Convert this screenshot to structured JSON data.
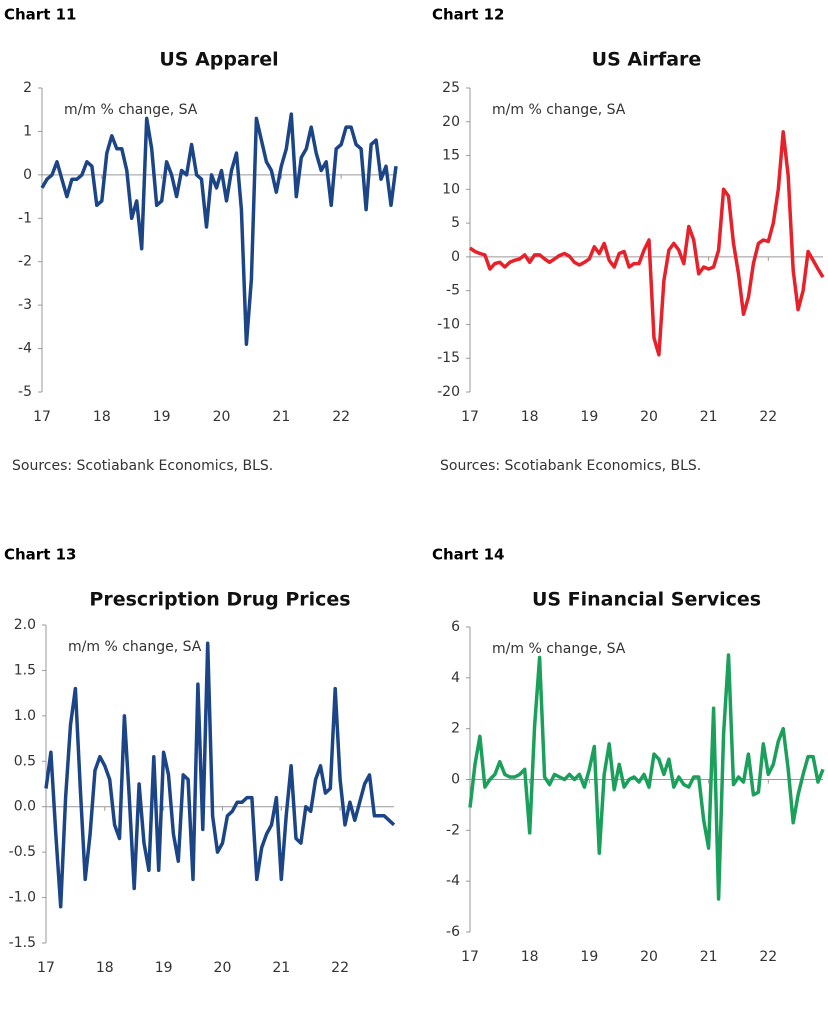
{
  "chart_data": [
    {
      "type": "line",
      "chart_label": "Chart 11",
      "title": "US Apparel",
      "subtitle": "m/m % change, SA",
      "source": "Sources: Scotiabank Economics, BLS.",
      "color": "#1c4587",
      "categories": [
        "17",
        null,
        null,
        null,
        null,
        null,
        null,
        null,
        null,
        null,
        null,
        null,
        "18",
        null,
        null,
        null,
        null,
        null,
        null,
        null,
        null,
        null,
        null,
        null,
        "19",
        null,
        null,
        null,
        null,
        null,
        null,
        null,
        null,
        null,
        null,
        null,
        "20",
        null,
        null,
        null,
        null,
        null,
        null,
        null,
        null,
        null,
        null,
        null,
        "21",
        null,
        null,
        null,
        null,
        null,
        null,
        null,
        null,
        null,
        null,
        null,
        "22",
        null,
        null,
        null,
        null,
        null,
        null,
        null,
        null,
        null,
        null,
        null
      ],
      "values": [
        -0.3,
        -0.1,
        0,
        0.3,
        -0.1,
        -0.5,
        -0.1,
        -0.1,
        0,
        0.3,
        0.2,
        -0.7,
        -0.6,
        0.5,
        0.9,
        0.6,
        0.6,
        0.1,
        -1.0,
        -0.6,
        -1.7,
        1.3,
        0.6,
        -0.7,
        -0.6,
        0.3,
        0,
        -0.5,
        0.1,
        0,
        0.7,
        0,
        -0.1,
        -1.2,
        0,
        -0.3,
        0.1,
        -0.6,
        0.1,
        0.5,
        -0.8,
        -3.9,
        -2.4,
        1.3,
        0.8,
        0.3,
        0.1,
        -0.4,
        0.2,
        0.6,
        1.4,
        -0.5,
        0.4,
        0.6,
        1.1,
        0.5,
        0.1,
        0.3,
        -0.7,
        0.6,
        0.7,
        1.1,
        1.1,
        0.7,
        0.6,
        -0.8,
        0.7,
        0.8,
        -0.1,
        0.2,
        -0.7,
        0.2
      ],
      "ylim": [
        -5,
        2
      ],
      "yticks": [
        -5,
        -4,
        -3,
        -2,
        -1,
        0,
        1,
        2
      ]
    },
    {
      "type": "line",
      "chart_label": "Chart 12",
      "title": "US Airfare",
      "subtitle": "m/m % change, SA",
      "source": "Sources: Scotiabank Economics, BLS.",
      "color": "#e8202a",
      "categories": [
        "17",
        null,
        null,
        null,
        null,
        null,
        null,
        null,
        null,
        null,
        null,
        null,
        "18",
        null,
        null,
        null,
        null,
        null,
        null,
        null,
        null,
        null,
        null,
        null,
        "19",
        null,
        null,
        null,
        null,
        null,
        null,
        null,
        null,
        null,
        null,
        null,
        "20",
        null,
        null,
        null,
        null,
        null,
        null,
        null,
        null,
        null,
        null,
        null,
        "21",
        null,
        null,
        null,
        null,
        null,
        null,
        null,
        null,
        null,
        null,
        null,
        "22",
        null,
        null,
        null,
        null,
        null,
        null,
        null,
        null,
        null,
        null,
        null
      ],
      "values": [
        1.3,
        0.8,
        0.5,
        0.3,
        -1.8,
        -1.0,
        -0.8,
        -1.5,
        -0.8,
        -0.5,
        -0.3,
        0.3,
        -0.8,
        0.3,
        0.3,
        -0.3,
        -0.8,
        -0.3,
        0.2,
        0.5,
        0.1,
        -0.8,
        -1.2,
        -0.8,
        -0.3,
        1.5,
        0.5,
        2.0,
        -0.5,
        -1.5,
        0.5,
        0.8,
        -1.5,
        -1.0,
        -1.0,
        1.0,
        2.5,
        -12.0,
        -14.5,
        -3.5,
        1.0,
        2.0,
        1.0,
        -1.0,
        4.5,
        2.5,
        -2.5,
        -1.5,
        -1.8,
        -1.5,
        1.0,
        10.0,
        9.0,
        2.0,
        -2.5,
        -8.5,
        -6.0,
        -1.0,
        2.0,
        2.5,
        2.3,
        5.0,
        10.0,
        18.5,
        12.0,
        -2.0,
        -7.8,
        -5.0,
        0.8,
        -0.5,
        -1.8,
        -3.0
      ],
      "ylim": [
        -20,
        25
      ],
      "yticks": [
        -20,
        -15,
        -10,
        -5,
        0,
        5,
        10,
        15,
        20,
        25
      ]
    },
    {
      "type": "line",
      "chart_label": "Chart 13",
      "title": "Prescription Drug Prices",
      "subtitle": "m/m % change, SA",
      "source": "Sources: Scotiabank Economics, BLS.",
      "color": "#1c4587",
      "categories": [
        "17",
        null,
        null,
        null,
        null,
        null,
        null,
        null,
        null,
        null,
        null,
        null,
        "18",
        null,
        null,
        null,
        null,
        null,
        null,
        null,
        null,
        null,
        null,
        null,
        "19",
        null,
        null,
        null,
        null,
        null,
        null,
        null,
        null,
        null,
        null,
        null,
        "20",
        null,
        null,
        null,
        null,
        null,
        null,
        null,
        null,
        null,
        null,
        null,
        "21",
        null,
        null,
        null,
        null,
        null,
        null,
        null,
        null,
        null,
        null,
        null,
        "22",
        null,
        null,
        null,
        null,
        null,
        null,
        null,
        null,
        null,
        null,
        null
      ],
      "values": [
        0.2,
        0.6,
        -0.3,
        -1.1,
        0.1,
        0.9,
        1.3,
        0.2,
        -0.8,
        -0.3,
        0.4,
        0.55,
        0.45,
        0.3,
        -0.2,
        -0.35,
        1.0,
        0.1,
        -0.9,
        0.25,
        -0.4,
        -0.7,
        0.55,
        -0.7,
        0.6,
        0.35,
        -0.3,
        -0.6,
        0.35,
        0.3,
        -0.8,
        1.35,
        -0.25,
        1.8,
        -0.1,
        -0.5,
        -0.4,
        -0.1,
        -0.05,
        0.05,
        0.05,
        0.1,
        0.1,
        -0.8,
        -0.45,
        -0.3,
        -0.2,
        0.1,
        -0.8,
        -0.1,
        0.45,
        -0.35,
        -0.4,
        0,
        -0.05,
        0.3,
        0.45,
        0.15,
        0.2,
        1.3,
        0.3,
        -0.2,
        0.05,
        -0.15,
        0.05,
        0.25,
        0.35,
        -0.1,
        -0.1,
        -0.1,
        -0.15,
        -0.2
      ],
      "ylim": [
        -1.5,
        2
      ],
      "yticks": [
        -1.5,
        {
          "value": -1,
          "label": "-1.0"
        },
        -0.5,
        {
          "value": 0,
          "label": "0.0"
        },
        0.5,
        {
          "value": 1,
          "label": "1.0"
        },
        1.5,
        {
          "value": 2,
          "label": "2.0"
        }
      ]
    },
    {
      "type": "line",
      "chart_label": "Chart 14",
      "title": "US Financial Services",
      "subtitle": "m/m % change, SA",
      "source": "Sources: Scotiabank Economics, BLS.",
      "color": "#1aa05a",
      "categories": [
        "17",
        null,
        null,
        null,
        null,
        null,
        null,
        null,
        null,
        null,
        null,
        null,
        "18",
        null,
        null,
        null,
        null,
        null,
        null,
        null,
        null,
        null,
        null,
        null,
        "19",
        null,
        null,
        null,
        null,
        null,
        null,
        null,
        null,
        null,
        null,
        null,
        "20",
        null,
        null,
        null,
        null,
        null,
        null,
        null,
        null,
        null,
        null,
        null,
        "21",
        null,
        null,
        null,
        null,
        null,
        null,
        null,
        null,
        null,
        null,
        null,
        "22",
        null,
        null,
        null,
        null,
        null,
        null,
        null,
        null,
        null,
        null,
        null
      ],
      "values": [
        -1.1,
        0.6,
        1.7,
        -0.3,
        0,
        0.2,
        0.7,
        0.2,
        0.1,
        0.1,
        0.2,
        0.4,
        -2.1,
        2.1,
        4.8,
        0.1,
        -0.2,
        0.2,
        0.1,
        0,
        0.2,
        0,
        0.2,
        -0.3,
        0.4,
        1.3,
        -2.9,
        0.2,
        1.4,
        -0.4,
        0.6,
        -0.3,
        0,
        0.1,
        -0.1,
        0.2,
        -0.3,
        1.0,
        0.8,
        0.2,
        0.8,
        -0.3,
        0.1,
        -0.2,
        -0.3,
        0.1,
        0.1,
        -1.6,
        -2.7,
        2.8,
        -4.7,
        1.8,
        4.9,
        -0.2,
        0.1,
        -0.1,
        1.0,
        -0.6,
        -0.5,
        1.4,
        0.2,
        0.6,
        1.5,
        2.0,
        0.4,
        -1.7,
        -0.6,
        0.2,
        0.9,
        0.9,
        -0.1,
        0.4
      ],
      "ylim": [
        -6,
        6
      ],
      "yticks": [
        -6,
        -4,
        -2,
        0,
        2,
        4,
        6
      ]
    }
  ]
}
